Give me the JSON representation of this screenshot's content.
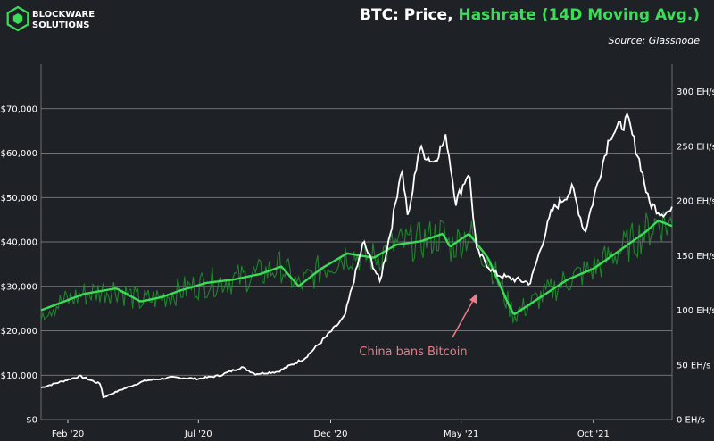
{
  "brand": {
    "line1": "BLOCKWARE",
    "line2": "SOLUTIONS"
  },
  "title": {
    "part1": "BTC: Price, ",
    "part2": "Hashrate (14D Moving Avg.)"
  },
  "source": "Source: Glassnode",
  "colors": {
    "background": "#1e2126",
    "price": "#ffffff",
    "hashrate_avg": "#3ddc58",
    "hashrate_raw": "#1f8f2e",
    "annotation": "#f07b86",
    "grid": "#8a8c90"
  },
  "chart_data": {
    "type": "line",
    "x_axis": {
      "ticks": [
        "Feb '20",
        "Jul '20",
        "Dec '20",
        "May '21",
        "Oct '21"
      ],
      "range": [
        "2020-01-01",
        "2021-12-31"
      ]
    },
    "y_left": {
      "ticks": [
        "$0",
        "$10,000",
        "$20,000",
        "$30,000",
        "$40,000",
        "$50,000",
        "$60,000",
        "$70,000"
      ],
      "range": [
        0,
        80000
      ]
    },
    "y_right": {
      "ticks": [
        "0 EH/s",
        "50 EH/s",
        "100 EH/s",
        "150 EH/s",
        "200 EH/s",
        "250 EH/s",
        "300 EH/s"
      ],
      "range": [
        0,
        325
      ]
    },
    "series": [
      {
        "name": "Price",
        "axis": "left",
        "x": [
          "2020-01-01",
          "2020-02-15",
          "2020-03-10",
          "2020-03-13",
          "2020-04-01",
          "2020-05-01",
          "2020-06-01",
          "2020-07-01",
          "2020-07-25",
          "2020-08-20",
          "2020-09-05",
          "2020-10-01",
          "2020-11-01",
          "2020-11-25",
          "2020-12-17",
          "2021-01-08",
          "2021-01-27",
          "2021-02-10",
          "2021-02-21",
          "2021-03-01",
          "2021-03-13",
          "2021-03-30",
          "2021-04-14",
          "2021-04-25",
          "2021-05-10",
          "2021-05-19",
          "2021-06-08",
          "2021-06-22",
          "2021-07-20",
          "2021-08-14",
          "2021-09-07",
          "2021-09-21",
          "2021-10-20",
          "2021-11-10",
          "2021-11-25",
          "2021-12-04",
          "2021-12-18",
          "2021-12-31"
        ],
        "y": [
          7200,
          9800,
          8000,
          5000,
          6600,
          8800,
          9500,
          9200,
          9900,
          11800,
          10300,
          10800,
          13800,
          18500,
          23000,
          40000,
          31000,
          44000,
          57000,
          45000,
          61000,
          58000,
          63500,
          49000,
          56000,
          38000,
          33000,
          32000,
          30800,
          47000,
          52000,
          42000,
          64000,
          67500,
          57000,
          49000,
          46500,
          47000
        ]
      },
      {
        "name": "Hashrate",
        "axis": "right",
        "x": [
          "2020-01-01",
          "2020-02-20",
          "2020-03-28",
          "2020-04-25",
          "2020-05-20",
          "2020-06-10",
          "2020-07-10",
          "2020-08-10",
          "2020-09-10",
          "2020-10-05",
          "2020-10-25",
          "2020-11-20",
          "2020-12-20",
          "2021-01-20",
          "2021-02-15",
          "2021-03-15",
          "2021-04-10",
          "2021-04-18",
          "2021-05-10",
          "2021-06-01",
          "2021-06-25",
          "2021-07-01",
          "2021-08-01",
          "2021-09-01",
          "2021-10-01",
          "2021-11-01",
          "2021-12-01",
          "2021-12-15",
          "2021-12-31"
        ],
        "y": [
          100,
          115,
          120,
          108,
          112,
          118,
          125,
          128,
          133,
          140,
          122,
          138,
          152,
          148,
          160,
          163,
          170,
          158,
          170,
          148,
          105,
          96,
          112,
          128,
          138,
          155,
          172,
          182,
          177
        ]
      }
    ],
    "annotations": [
      {
        "text": "China bans Bitcoin"
      }
    ]
  }
}
